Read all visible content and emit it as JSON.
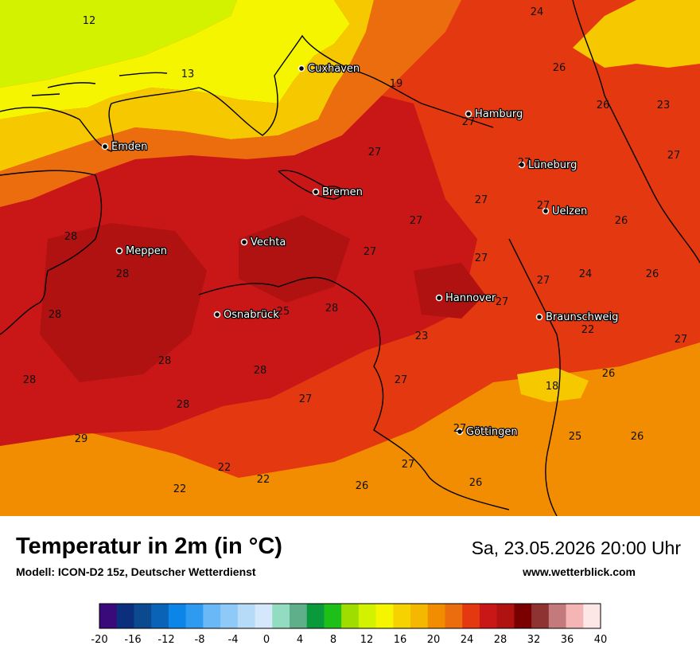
{
  "map": {
    "colors": {
      "sea_cool": "#d2f200",
      "sea_yellow": "#f5f500",
      "band_20": "#f5c800",
      "band_22": "#f28c00",
      "band_24": "#eb6d0e",
      "band_26": "#e43810",
      "band_28": "#c91616",
      "band_30": "#b01212",
      "border": "#000000"
    },
    "cities": [
      {
        "name": "Cuxhaven"
      },
      {
        "name": "Emden"
      },
      {
        "name": "Hamburg"
      },
      {
        "name": "Lüneburg"
      },
      {
        "name": "Bremen"
      },
      {
        "name": "Uelzen"
      },
      {
        "name": "Vechta"
      },
      {
        "name": "Meppen"
      },
      {
        "name": "Hannover"
      },
      {
        "name": "Osnabrück"
      },
      {
        "name": "Braunschweig"
      },
      {
        "name": "Göttingen"
      }
    ],
    "values": [
      "12",
      "13",
      "24",
      "26",
      "26",
      "23",
      "19",
      "27",
      "27",
      "27",
      "27",
      "27",
      "27",
      "26",
      "28",
      "28",
      "27",
      "27",
      "24",
      "26",
      "27",
      "28",
      "28",
      "27",
      "22",
      "27",
      "23",
      "28",
      "28",
      "28",
      "27",
      "27",
      "26",
      "18",
      "28",
      "27",
      "27",
      "25",
      "26",
      "29",
      "22",
      "22",
      "27",
      "22",
      "26",
      "26",
      "25"
    ]
  },
  "footer": {
    "title": "Temperatur in 2m (in °C)",
    "model": "Modell: ICON-D2 15z, Deutscher Wetterdienst",
    "datetime": "Sa, 23.05.2026 20:00 Uhr",
    "website": "www.wetterblick.com"
  },
  "legend": {
    "ticks": [
      "-20",
      "-16",
      "-12",
      "-8",
      "-4",
      "0",
      "4",
      "8",
      "12",
      "16",
      "20",
      "24",
      "28",
      "32",
      "36",
      "40"
    ],
    "colors": [
      "#3b0a7a",
      "#0b2f7d",
      "#0c4a8f",
      "#0b63b8",
      "#0b86e8",
      "#2e9bf0",
      "#6ab8f5",
      "#8ec9f7",
      "#b6dbf9",
      "#d5e8fb",
      "#93dcc1",
      "#5fb08a",
      "#0a9a3c",
      "#1fbf1a",
      "#9fdc00",
      "#d2f200",
      "#f5f500",
      "#f5d200",
      "#f5b800",
      "#f28c00",
      "#eb6d0e",
      "#e43810",
      "#c91616",
      "#b01212",
      "#7a0000",
      "#8f3232",
      "#c47a7a",
      "#f5b5b5",
      "#fde6e6"
    ]
  }
}
